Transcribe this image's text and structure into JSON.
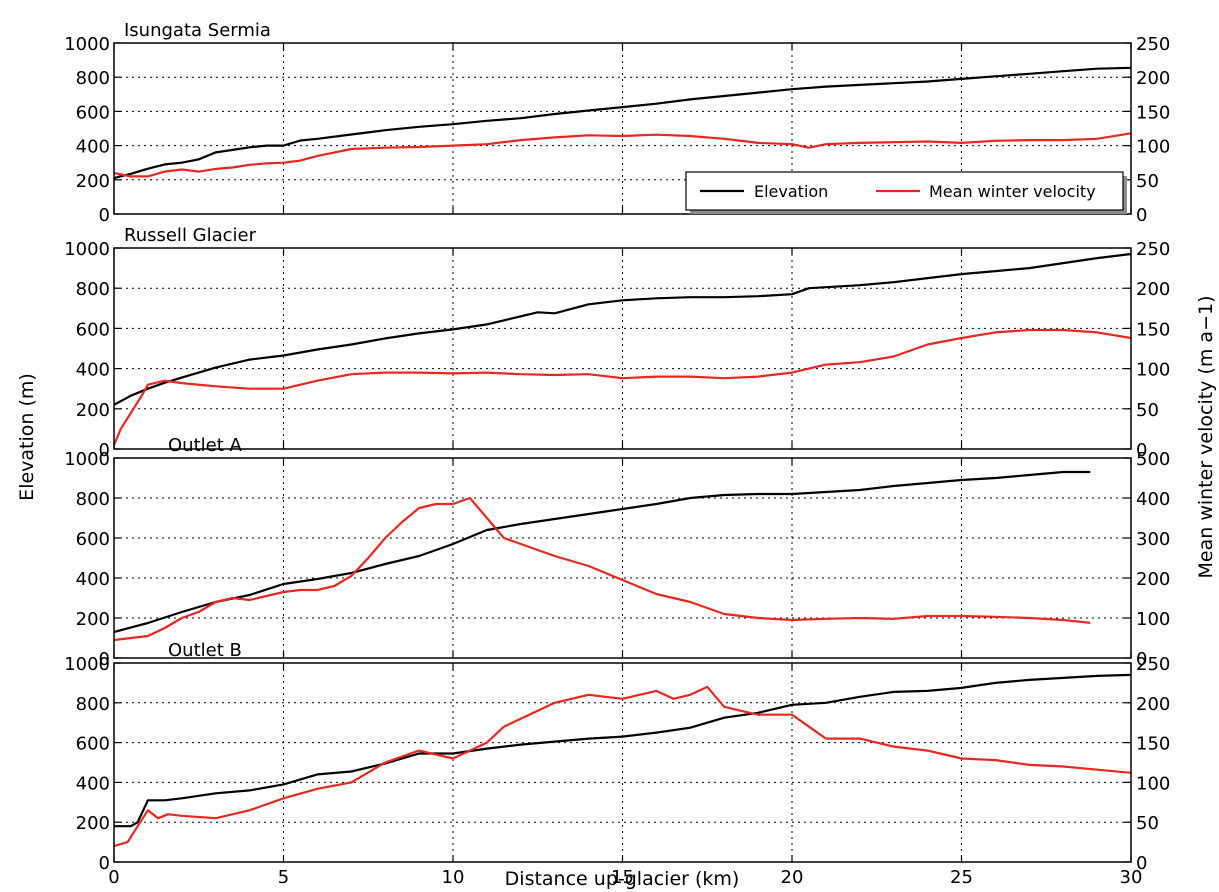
{
  "chart_data": {
    "type": "line",
    "xlabel": "Distance up-glacier (km)",
    "ylabel_left": "Elevation (m)",
    "ylabel_right": "Mean winter velocity (m a−1)",
    "xlim": [
      0,
      30
    ],
    "xticks": [
      0,
      5,
      10,
      15,
      20,
      25,
      30
    ],
    "grid": true,
    "legend": {
      "placement": "lower-right of top panel",
      "entries": [
        {
          "name": "Elevation",
          "color": "#000000"
        },
        {
          "name": "Mean winter velocity",
          "color": "#e8281e"
        }
      ]
    },
    "panels": [
      {
        "title": "Isungata Sermia",
        "ylim_left": [
          0,
          1000
        ],
        "yticks_left": [
          0,
          200,
          400,
          600,
          800,
          1000
        ],
        "ylim_right": [
          0,
          250
        ],
        "yticks_right": [
          0,
          50,
          100,
          150,
          200,
          250
        ],
        "series": [
          {
            "name": "Elevation",
            "axis": "left",
            "color": "#000000",
            "x": [
              0,
              0.5,
              1,
              1.5,
              2,
              2.5,
              3,
              3.5,
              4,
              4.5,
              5,
              5.5,
              6,
              7,
              8,
              9,
              10,
              11,
              12,
              13,
              14,
              15,
              16,
              17,
              18,
              19,
              20,
              21,
              22,
              23,
              24,
              25,
              26,
              27,
              28,
              29,
              30
            ],
            "y": [
              210,
              235,
              265,
              290,
              300,
              320,
              360,
              375,
              390,
              400,
              400,
              430,
              440,
              465,
              490,
              510,
              525,
              545,
              560,
              585,
              605,
              625,
              645,
              670,
              690,
              710,
              730,
              745,
              755,
              765,
              775,
              790,
              805,
              820,
              835,
              850,
              855
            ]
          },
          {
            "name": "Mean winter velocity",
            "axis": "right",
            "color": "#e8281e",
            "x": [
              0,
              0.5,
              1,
              1.5,
              2,
              2.5,
              3,
              3.5,
              4,
              4.5,
              5,
              5.5,
              6,
              7,
              8,
              9,
              10,
              11,
              12,
              13,
              14,
              15,
              16,
              17,
              18,
              19,
              20,
              20.5,
              21,
              22,
              23,
              24,
              25,
              26,
              27,
              28,
              29,
              30
            ],
            "y": [
              60,
              55,
              55,
              62,
              65,
              62,
              66,
              68,
              72,
              74,
              75,
              78,
              85,
              95,
              97,
              98,
              100,
              102,
              108,
              112,
              115,
              114,
              116,
              114,
              110,
              104,
              102,
              97,
              102,
              104,
              105,
              106,
              104,
              107,
              108,
              108,
              110,
              118
            ]
          }
        ]
      },
      {
        "title": "Russell Glacier",
        "ylim_left": [
          0,
          1000
        ],
        "yticks_left": [
          0,
          200,
          400,
          600,
          800,
          1000
        ],
        "ylim_right": [
          0,
          250
        ],
        "yticks_right": [
          0,
          50,
          100,
          150,
          200,
          250
        ],
        "series": [
          {
            "name": "Elevation",
            "axis": "left",
            "color": "#000000",
            "x": [
              0,
              0.5,
              1,
              1.5,
              2,
              3,
              4,
              5,
              6,
              7,
              8,
              9,
              10,
              11,
              12,
              12.5,
              13,
              14,
              15,
              16,
              17,
              18,
              19,
              20,
              20.5,
              21,
              22,
              23,
              24,
              25,
              26,
              27,
              28,
              29,
              30
            ],
            "y": [
              220,
              265,
              300,
              330,
              355,
              405,
              445,
              465,
              495,
              520,
              550,
              575,
              595,
              620,
              660,
              680,
              675,
              720,
              740,
              750,
              755,
              755,
              760,
              770,
              800,
              805,
              815,
              830,
              850,
              870,
              885,
              900,
              925,
              950,
              970
            ]
          },
          {
            "name": "Mean winter velocity",
            "axis": "right",
            "color": "#e8281e",
            "x": [
              0,
              0.2,
              0.5,
              0.8,
              1,
              1.5,
              2,
              3,
              4,
              5,
              6,
              7,
              8,
              9,
              10,
              11,
              12,
              13,
              14,
              15,
              16,
              17,
              18,
              19,
              20,
              21,
              22,
              23,
              24,
              25,
              26,
              27,
              28,
              29,
              30
            ],
            "y": [
              5,
              25,
              45,
              65,
              80,
              85,
              82,
              78,
              75,
              75,
              85,
              93,
              95,
              95,
              94,
              95,
              93,
              92,
              93,
              88,
              90,
              90,
              88,
              90,
              95,
              105,
              108,
              115,
              130,
              138,
              145,
              148,
              148,
              145,
              138
            ]
          }
        ]
      },
      {
        "title": "Outlet A",
        "ylim_left": [
          0,
          1000
        ],
        "yticks_left": [
          0,
          200,
          400,
          600,
          800,
          1000
        ],
        "ylim_right": [
          0,
          500
        ],
        "yticks_right": [
          0,
          100,
          200,
          300,
          400,
          500
        ],
        "series": [
          {
            "name": "Elevation",
            "axis": "left",
            "color": "#000000",
            "x": [
              0,
              1,
              2,
              3,
              4,
              5,
              6,
              7,
              8,
              9,
              10,
              11,
              12,
              13,
              14,
              15,
              16,
              17,
              18,
              19,
              20,
              21,
              22,
              23,
              24,
              25,
              26,
              27,
              28,
              28.8
            ],
            "y": [
              130,
              175,
              230,
              280,
              315,
              370,
              395,
              425,
              470,
              510,
              570,
              640,
              670,
              695,
              720,
              745,
              770,
              800,
              815,
              820,
              820,
              830,
              840,
              860,
              875,
              890,
              900,
              915,
              930,
              930
            ]
          },
          {
            "name": "Mean winter velocity",
            "axis": "right",
            "color": "#e8281e",
            "x": [
              0,
              0.5,
              1,
              1.5,
              2,
              2.5,
              3,
              3.5,
              4,
              4.5,
              5,
              5.5,
              6,
              6.5,
              7,
              7.5,
              8,
              8.5,
              9,
              9.5,
              10,
              10.5,
              11,
              11.5,
              12,
              13,
              14,
              15,
              16,
              17,
              18,
              19,
              20,
              21,
              22,
              23,
              24,
              25,
              26,
              27,
              28,
              28.8
            ],
            "y": [
              45,
              50,
              55,
              75,
              100,
              115,
              140,
              150,
              145,
              155,
              165,
              170,
              170,
              180,
              205,
              250,
              300,
              340,
              375,
              385,
              385,
              400,
              350,
              300,
              285,
              255,
              230,
              195,
              160,
              140,
              110,
              100,
              95,
              98,
              100,
              98,
              105,
              105,
              103,
              100,
              95,
              88
            ]
          }
        ]
      },
      {
        "title": "Outlet B",
        "ylim_left": [
          0,
          1000
        ],
        "yticks_left": [
          0,
          200,
          400,
          600,
          800,
          1000
        ],
        "ylim_right": [
          0,
          250
        ],
        "yticks_right": [
          0,
          50,
          100,
          150,
          200,
          250
        ],
        "series": [
          {
            "name": "Elevation",
            "axis": "left",
            "color": "#000000",
            "x": [
              0,
              0.5,
              0.7,
              1,
              1.5,
              2,
              3,
              4,
              5,
              6,
              7,
              8,
              9,
              10,
              11,
              12,
              13,
              14,
              15,
              16,
              17,
              18,
              19,
              20,
              21,
              22,
              23,
              24,
              25,
              26,
              27,
              28,
              29,
              30
            ],
            "y": [
              180,
              180,
              200,
              310,
              310,
              320,
              345,
              360,
              390,
              440,
              455,
              495,
              545,
              545,
              570,
              590,
              605,
              620,
              630,
              650,
              675,
              725,
              750,
              790,
              800,
              830,
              855,
              860,
              875,
              900,
              915,
              925,
              935,
              940
            ]
          },
          {
            "name": "Mean winter velocity",
            "axis": "right",
            "color": "#e8281e",
            "x": [
              0,
              0.4,
              0.7,
              1,
              1.3,
              1.6,
              2,
              3,
              4,
              5,
              6,
              7,
              8,
              9,
              10,
              11,
              11.5,
              12,
              13,
              14,
              15,
              15.5,
              16,
              16.5,
              17,
              17.5,
              18,
              18.5,
              19,
              20,
              20.5,
              21,
              22,
              23,
              24,
              25,
              26,
              27,
              28,
              29,
              30
            ],
            "y": [
              20,
              25,
              45,
              65,
              55,
              60,
              58,
              55,
              65,
              80,
              92,
              100,
              125,
              140,
              130,
              150,
              170,
              180,
              200,
              210,
              205,
              210,
              215,
              205,
              210,
              220,
              195,
              190,
              185,
              185,
              170,
              155,
              155,
              145,
              140,
              130,
              128,
              122,
              120,
              116,
              112
            ]
          }
        ]
      }
    ]
  }
}
